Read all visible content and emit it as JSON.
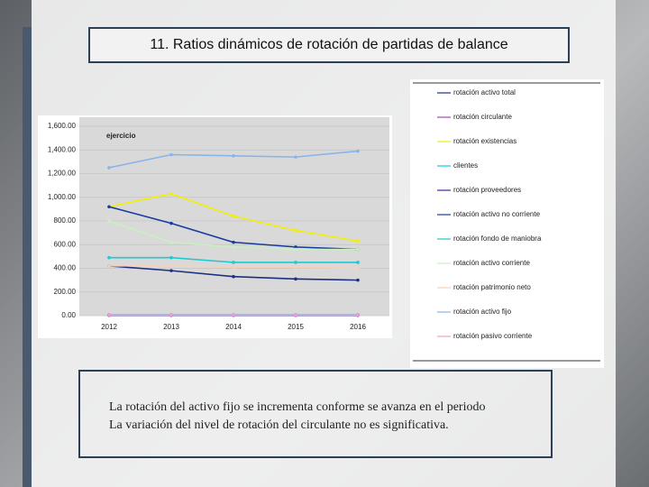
{
  "slide": {
    "title": "11. Ratios dinámicos de rotación de partidas de balance",
    "text": [
      "La rotación del activo fijo se incrementa conforme se avanza en el periodo",
      "La variación del nivel de rotación del circulante no es significativa."
    ]
  },
  "chart_data": {
    "type": "line",
    "annotation": "ejercicio",
    "categories": [
      "2012",
      "2013",
      "2014",
      "2015",
      "2016"
    ],
    "ylim": [
      0,
      1600
    ],
    "yticks": [
      {
        "value": 0,
        "label": "0.00"
      },
      {
        "value": 200,
        "label": "200.00"
      },
      {
        "value": 400,
        "label": "400.00"
      },
      {
        "value": 600,
        "label": "600.00"
      },
      {
        "value": 800,
        "label": "800.00"
      },
      {
        "value": 1000,
        "label": "1,000.00"
      },
      {
        "value": 1200,
        "label": "1,200.00"
      },
      {
        "value": 1400,
        "label": "1,400.00"
      },
      {
        "value": 1600,
        "label": "1,600.00"
      }
    ],
    "grid": true,
    "series": [
      {
        "name": "rotación activo total",
        "color": "#1f2f80",
        "values": [
          420,
          380,
          330,
          310,
          300
        ]
      },
      {
        "name": "rotación circulante",
        "color": "#b040c0",
        "values": [
          5,
          5,
          5,
          5,
          5
        ]
      },
      {
        "name": "rotación existencias",
        "color": "#f0f000",
        "values": [
          920,
          1030,
          840,
          720,
          630
        ]
      },
      {
        "name": "clientes",
        "color": "#00d0e0",
        "values": [
          8,
          8,
          8,
          8,
          8
        ]
      },
      {
        "name": "rotación proveedores",
        "color": "#5020a0",
        "values": [
          3,
          3,
          3,
          3,
          3
        ]
      },
      {
        "name": "rotación activo no corriente",
        "color": "#1a3aa0",
        "values": [
          920,
          780,
          620,
          580,
          560
        ]
      },
      {
        "name": "rotación fondo de maniobra",
        "color": "#20c8d0",
        "values": [
          490,
          490,
          450,
          450,
          450
        ]
      },
      {
        "name": "rotación activo corriente",
        "color": "#c8f0c0",
        "values": [
          800,
          620,
          580,
          560,
          560
        ]
      },
      {
        "name": "rotación patrimonio neto",
        "color": "#f8d0b8",
        "values": [
          420,
          420,
          410,
          410,
          400
        ]
      },
      {
        "name": "rotación activo fijo",
        "color": "#88b4e8",
        "values": [
          1250,
          1360,
          1350,
          1340,
          1390
        ]
      },
      {
        "name": "rotación pasivo corriente",
        "color": "#f0a0c8",
        "values": [
          6,
          6,
          6,
          6,
          6
        ]
      }
    ]
  }
}
